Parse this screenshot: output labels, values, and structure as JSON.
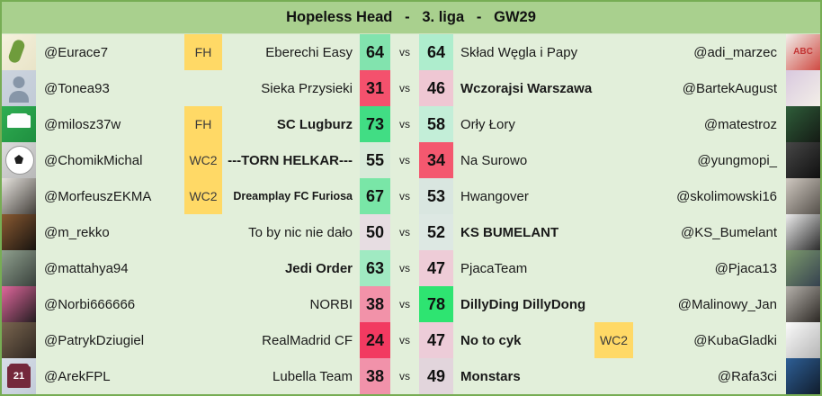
{
  "header": {
    "title": "Hopeless Head   -   3. liga   -   GW29"
  },
  "vs_label": "vs",
  "colors": {
    "header_bg": "#a9d08e",
    "row_bg": "#e2efda",
    "border": "#77ad54",
    "chip_bg": "#ffd966"
  },
  "rows": [
    {
      "left": {
        "user": "@Eurace7",
        "chip": "FH",
        "team": "Eberechi Easy",
        "team_bold": false,
        "score": "64",
        "score_bg": "#82e3ae",
        "avatar": {
          "desc": "pickle-character",
          "icon": "pickle",
          "c1": "#f5f1dd",
          "c2": "#e9e4c8",
          "label": ""
        }
      },
      "right": {
        "user": "@adi_marzec",
        "chip": "",
        "team": "Skład Węgla i Papy",
        "team_bold": false,
        "score": "64",
        "score_bg": "#aeedcd",
        "avatar": {
          "desc": "abc-red-white-logo",
          "icon": "photo",
          "c1": "#f2eeea",
          "c2": "#cf4a42",
          "label": "ABC"
        }
      }
    },
    {
      "left": {
        "user": "@Tonea93",
        "chip": "",
        "team": "Sieka Przysieki",
        "team_bold": false,
        "score": "31",
        "score_bg": "#f4516d",
        "avatar": {
          "desc": "generic-person-silhouette",
          "icon": "person",
          "c1": "#ccd4de",
          "c2": "#c2cbd7",
          "label": ""
        }
      },
      "right": {
        "user": "@BartekAugust",
        "chip": "",
        "team": "Wczorajsi Warszawa",
        "team_bold": true,
        "score": "46",
        "score_bg": "#efc7d3",
        "avatar": {
          "desc": "man-in-white-shirt-photo",
          "icon": "photo",
          "c1": "#d9c9df",
          "c2": "#f3efe8",
          "label": ""
        }
      }
    },
    {
      "left": {
        "user": "@milosz37w",
        "chip": "FH",
        "team": "SC Lugburz",
        "team_bold": true,
        "score": "73",
        "score_bg": "#41dd84",
        "avatar": {
          "desc": "fpl-kit-card",
          "icon": "kit",
          "c1": "#2fae52",
          "c2": "#1f8f40",
          "label": ""
        }
      },
      "right": {
        "user": "@matestroz",
        "chip": "",
        "team": "Orły Łory",
        "team_bold": false,
        "score": "58",
        "score_bg": "#c3eed8",
        "avatar": {
          "desc": "green-black-striped-jersey-photo",
          "icon": "photo",
          "c1": "#2f5e3a",
          "c2": "#141a14",
          "label": ""
        }
      }
    },
    {
      "left": {
        "user": "@ChomikMichal",
        "chip": "WC2",
        "team": "---TORN HELKAR---",
        "team_bold": true,
        "score": "55",
        "score_bg": "#d8ead9",
        "avatar": {
          "desc": "soccer-ball-with-badges",
          "icon": "soccer-ball",
          "c1": "#dcdcdc",
          "c2": "#b8b8b8",
          "label": ""
        }
      },
      "right": {
        "user": "@yungmopi_",
        "chip": "",
        "team": "Na Surowo",
        "team_bold": false,
        "score": "34",
        "score_bg": "#f4586f",
        "avatar": {
          "desc": "dark-bw-figure-photo",
          "icon": "photo",
          "c1": "#474747",
          "c2": "#0f0f0f",
          "label": ""
        }
      }
    },
    {
      "left": {
        "user": "@MorfeuszEKMA",
        "chip": "WC2",
        "team": "Dreamplay FC Furiosa",
        "team_bold": true,
        "team_small": true,
        "score": "67",
        "score_bg": "#79e6a7",
        "avatar": {
          "desc": "bw-face-sketch",
          "icon": "photo",
          "c1": "#e6e3de",
          "c2": "#44403b",
          "label": ""
        }
      },
      "right": {
        "user": "@skolimowski16",
        "chip": "",
        "team": "Hwangover",
        "team_bold": false,
        "score": "53",
        "score_bg": "#d9e6e0",
        "avatar": {
          "desc": "bw-tattoo-photo",
          "icon": "photo",
          "c1": "#cfc8c0",
          "c2": "#55504a",
          "label": ""
        }
      }
    },
    {
      "left": {
        "user": "@m_rekko",
        "chip": "",
        "team": "To by nic nie dało",
        "team_bold": false,
        "score": "50",
        "score_bg": "#e7dde2",
        "avatar": {
          "desc": "bw-muscular-man-photo",
          "icon": "photo",
          "c1": "#8a5a32",
          "c2": "#17130f",
          "label": ""
        }
      },
      "right": {
        "user": "@KS_Bumelant",
        "chip": "",
        "team": "KS BUMELANT",
        "team_bold": true,
        "score": "52",
        "score_bg": "#dde8e3",
        "avatar": {
          "desc": "bw-beach-silhouette-photo",
          "icon": "photo",
          "c1": "#ececec",
          "c2": "#2b2b2b",
          "label": ""
        }
      }
    },
    {
      "left": {
        "user": "@mattahya94",
        "chip": "",
        "team": "Jedi Order",
        "team_bold": true,
        "score": "63",
        "score_bg": "#a0eac2",
        "avatar": {
          "desc": "man-in-mountains-photo",
          "icon": "photo",
          "c1": "#8fa08e",
          "c2": "#39413c",
          "label": ""
        }
      },
      "right": {
        "user": "@Pjaca13",
        "chip": "",
        "team": "PjacaTeam",
        "team_bold": false,
        "score": "47",
        "score_bg": "#eeccd7",
        "avatar": {
          "desc": "hiker-in-mountains-photo",
          "icon": "photo",
          "c1": "#7e9c6e",
          "c2": "#35414f",
          "label": ""
        }
      }
    },
    {
      "left": {
        "user": "@Norbi666666",
        "chip": "",
        "team": "NORBI",
        "team_bold": false,
        "score": "38",
        "score_bg": "#f292a9",
        "avatar": {
          "desc": "pink-dark-photo",
          "icon": "photo",
          "c1": "#e0679c",
          "c2": "#241d21",
          "label": ""
        }
      },
      "right": {
        "user": "@Malinowy_Jan",
        "chip": "",
        "team": "DillyDing DillyDong",
        "team_bold": true,
        "score": "78",
        "score_bg": "#2ee471",
        "avatar": {
          "desc": "bw-cowboy-photo",
          "icon": "photo",
          "c1": "#b5b1ab",
          "c2": "#2c2824",
          "label": ""
        }
      }
    },
    {
      "left": {
        "user": "@PatrykDziugiel",
        "chip": "",
        "team": "RealMadrid CF",
        "team_bold": false,
        "score": "24",
        "score_bg": "#f23a61",
        "avatar": {
          "desc": "bar-scene-photo",
          "icon": "photo",
          "c1": "#7a6650",
          "c2": "#2e2620",
          "label": ""
        }
      },
      "right": {
        "user": "@KubaGladki",
        "chip": "WC2",
        "team": "No to cyk",
        "team_bold": true,
        "score": "47",
        "score_bg": "#edccd8",
        "avatar": {
          "desc": "white-sketch-figure",
          "icon": "photo",
          "c1": "#fbfbfb",
          "c2": "#b5b5b5",
          "label": ""
        }
      }
    },
    {
      "left": {
        "user": "@ArekFPL",
        "chip": "",
        "team": "Lubella Team",
        "team_bold": false,
        "score": "38",
        "score_bg": "#f192aa",
        "avatar": {
          "desc": "claret-football-shirt-21",
          "icon": "shirt",
          "c1": "#d7dee8",
          "c2": "#c3ccd9",
          "label": "21"
        }
      },
      "right": {
        "user": "@Rafa3ci",
        "chip": "",
        "team": "Monstars",
        "team_bold": true,
        "score": "49",
        "score_bg": "#e2d5dc",
        "avatar": {
          "desc": "man-with-sunglasses-blue-photo",
          "icon": "photo",
          "c1": "#2e5f96",
          "c2": "#101c2c",
          "label": ""
        }
      }
    }
  ]
}
